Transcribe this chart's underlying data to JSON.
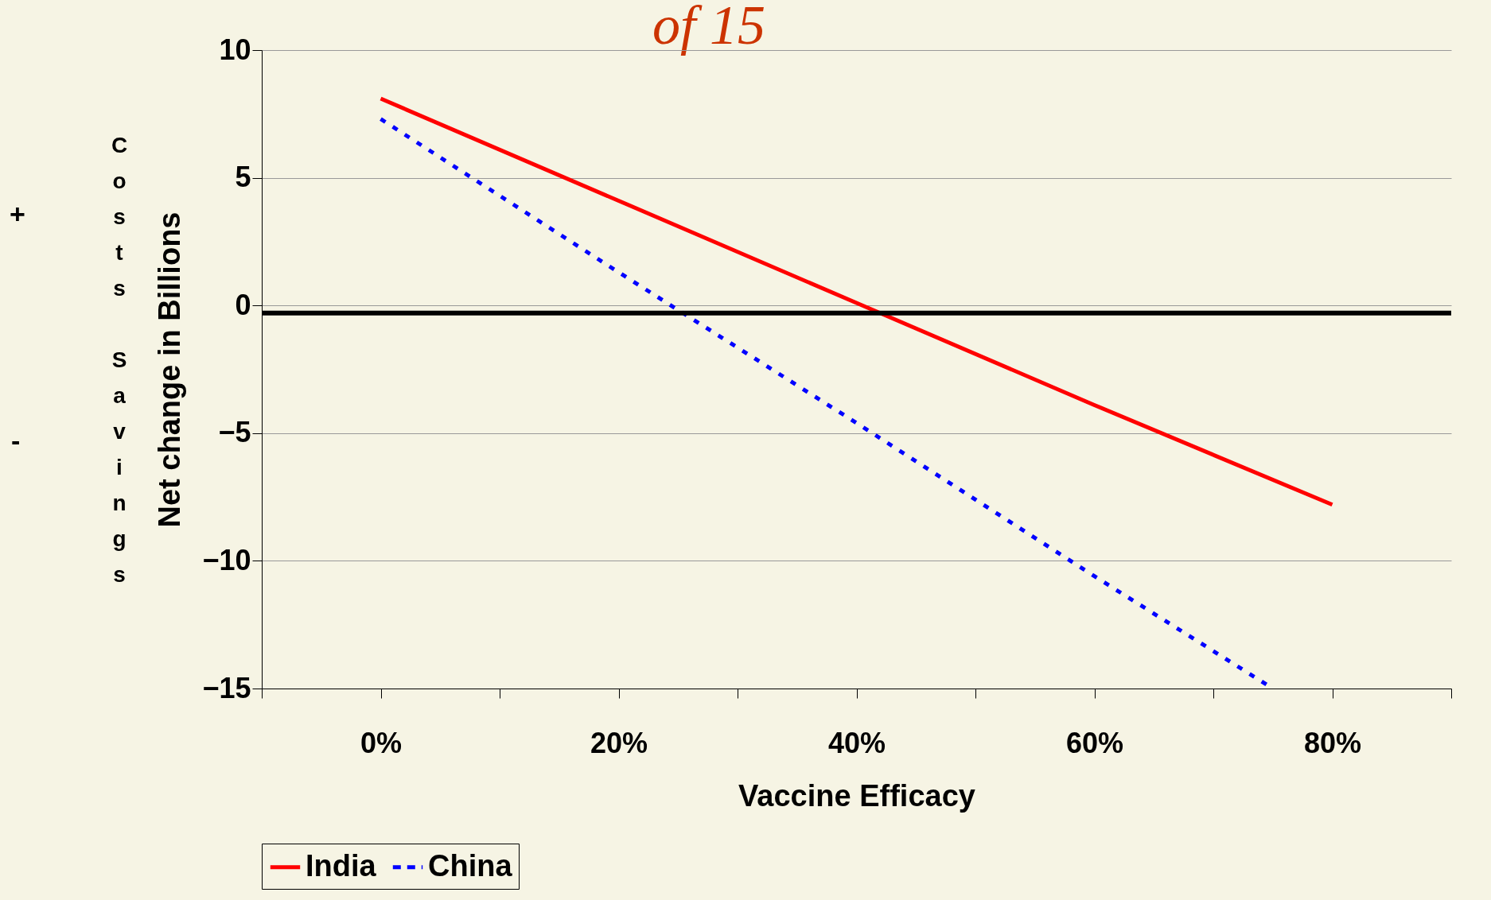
{
  "chart_data": {
    "type": "line",
    "title": "of 15",
    "xlabel": "Vaccine Efficacy",
    "ylabel": "Net change in Billions",
    "annotations": [
      "+",
      "-",
      "Costs",
      "Savings"
    ],
    "xlim": [
      -10,
      90
    ],
    "xticks": [
      {
        "value": -10,
        "label": null
      },
      {
        "value": 0,
        "label": "0%"
      },
      {
        "value": 10,
        "label": null
      },
      {
        "value": 20,
        "label": "20%"
      },
      {
        "value": 30,
        "label": null
      },
      {
        "value": 40,
        "label": "40%"
      },
      {
        "value": 50,
        "label": null
      },
      {
        "value": 60,
        "label": "60%"
      },
      {
        "value": 70,
        "label": null
      },
      {
        "value": 80,
        "label": "80%"
      },
      {
        "value": 90,
        "label": null
      }
    ],
    "ylim": [
      -15,
      10
    ],
    "yticks": [
      -15,
      -10,
      -5,
      0,
      5,
      10
    ],
    "grid": "y",
    "legend": "bottom",
    "ref_lines": [
      {
        "axis": "y",
        "value": -0.3,
        "color": "#000000"
      }
    ],
    "series": [
      {
        "name": "India",
        "color": "#ff0000",
        "line_style": "solid",
        "x": [
          0,
          20,
          40,
          60,
          80
        ],
        "values": [
          8.1,
          4.1,
          0.1,
          -3.9,
          -7.8
        ]
      },
      {
        "name": "China",
        "color": "#0000ff",
        "line_style": "dotted",
        "x": [
          0,
          20,
          40,
          60,
          75
        ],
        "values": [
          7.3,
          1.3,
          -4.6,
          -10.6,
          -15.0
        ]
      }
    ]
  }
}
